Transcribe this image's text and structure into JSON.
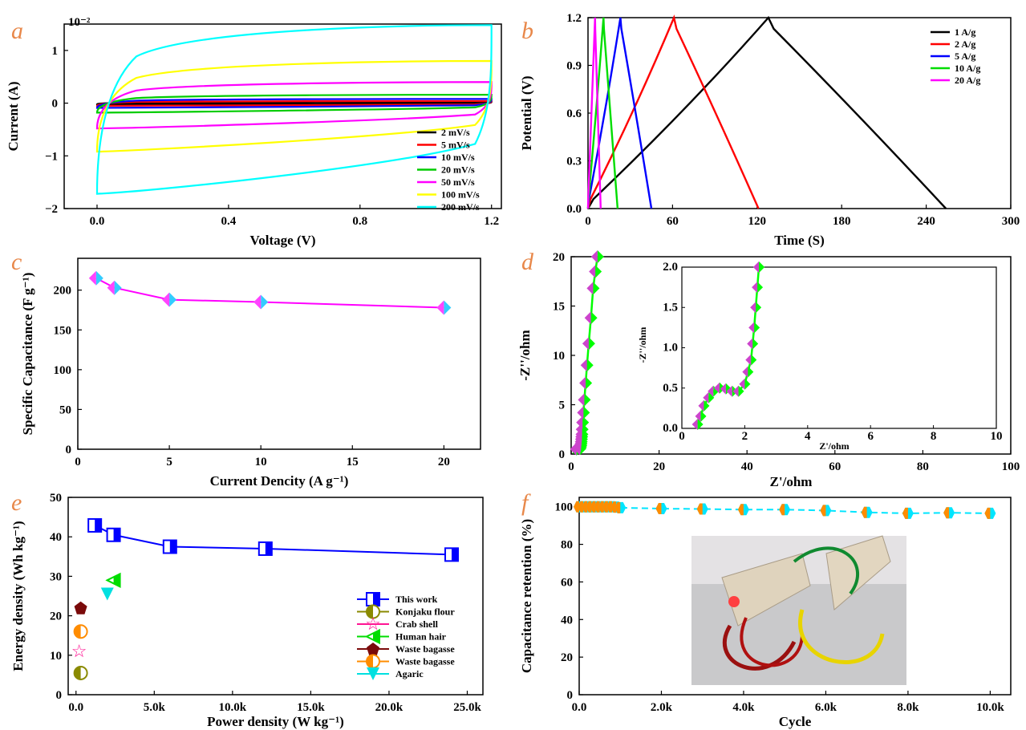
{
  "chart_data": [
    {
      "panel": "a",
      "type": "line",
      "xlabel": "Voltage (V)",
      "ylabel": "Current (A)",
      "multiplier": "10⁻²",
      "xlim": [
        -0.1,
        1.23
      ],
      "ylim": [
        -2,
        1.5
      ],
      "xticks": [
        "0.0",
        "0.4",
        "0.8",
        "1.2"
      ],
      "yticks": [
        "−2",
        "−1",
        "0",
        "1"
      ],
      "legend_position": "bottom-right",
      "series": [
        {
          "name": "2 mV/s",
          "color": "#000000",
          "top": 0.02,
          "bottom": -0.02
        },
        {
          "name": "5 mV/s",
          "color": "#ff0000",
          "top": 0.04,
          "bottom": -0.05
        },
        {
          "name": "10 mV/s",
          "color": "#0000ff",
          "top": 0.08,
          "bottom": -0.09
        },
        {
          "name": "20 mV/s",
          "color": "#00cc00",
          "top": 0.16,
          "bottom": -0.18
        },
        {
          "name": "50 mV/s",
          "color": "#ff00ff",
          "top": 0.4,
          "bottom": -0.48
        },
        {
          "name": "100 mV/s",
          "color": "#ffff00",
          "top": 0.8,
          "bottom": -0.92
        },
        {
          "name": "200 mV/s",
          "color": "#00ffff",
          "top": 1.48,
          "bottom": -1.72
        }
      ]
    },
    {
      "panel": "b",
      "type": "line",
      "xlabel": "Time (S)",
      "ylabel": "Potential (V)",
      "xlim": [
        0,
        300
      ],
      "ylim": [
        0,
        1.2
      ],
      "xticks": [
        "0",
        "60",
        "120",
        "180",
        "240",
        "300"
      ],
      "yticks": [
        "0.0",
        "0.3",
        "0.6",
        "0.9",
        "1.2"
      ],
      "legend_position": "top-right",
      "series": [
        {
          "name": "1 A/g",
          "color": "#000000",
          "peak": 128,
          "end": 254
        },
        {
          "name": "2 A/g",
          "color": "#ff0000",
          "peak": 61,
          "end": 121
        },
        {
          "name": "5 A/g",
          "color": "#0000ff",
          "peak": 23,
          "end": 45
        },
        {
          "name": "10 A/g",
          "color": "#00dd00",
          "peak": 11,
          "end": 21
        },
        {
          "name": "20 A/g",
          "color": "#ff00ff",
          "peak": 5,
          "end": 9
        }
      ]
    },
    {
      "panel": "c",
      "type": "line",
      "xlabel": "Current Dencity (A g⁻¹)",
      "ylabel": "Specific Capacitance (F g⁻¹)",
      "xlim": [
        0,
        22
      ],
      "ylim": [
        0,
        240
      ],
      "xticks": [
        "0",
        "5",
        "10",
        "15",
        "20"
      ],
      "yticks": [
        "0",
        "50",
        "100",
        "150",
        "200"
      ],
      "x": [
        1,
        2,
        5,
        10,
        20
      ],
      "y": [
        215,
        203,
        188,
        185,
        178
      ]
    },
    {
      "panel": "d",
      "type": "scatter",
      "xlabel": "Z'/ohm",
      "ylabel": "-Z''/ohm",
      "xlim": [
        0,
        100
      ],
      "ylim": [
        0,
        20
      ],
      "xticks": [
        "0",
        "20",
        "40",
        "60",
        "80",
        "100"
      ],
      "yticks": [
        "0",
        "5",
        "10",
        "15",
        "20"
      ],
      "inset": {
        "xlabel": "Z'/ohm",
        "ylabel": "-Z''/ohm",
        "xlim": [
          0,
          10
        ],
        "ylim": [
          0,
          2.0
        ],
        "xticks": [
          "0",
          "2",
          "4",
          "6",
          "8",
          "10"
        ],
        "yticks": [
          "0.0",
          "0.5",
          "1.0",
          "1.5",
          "2.0"
        ]
      },
      "x": [
        0.5,
        0.6,
        0.7,
        0.85,
        1.0,
        1.2,
        1.4,
        1.6,
        1.8,
        2.0,
        2.1,
        2.2,
        2.25,
        2.3,
        2.35,
        2.4,
        2.45,
        2.5,
        2.6,
        2.8,
        3.0,
        3.3,
        3.6,
        4.0,
        4.5,
        5.0,
        5.5,
        6.0
      ],
      "y": [
        0.05,
        0.15,
        0.28,
        0.38,
        0.46,
        0.5,
        0.49,
        0.46,
        0.46,
        0.55,
        0.7,
        0.85,
        1.05,
        1.25,
        1.5,
        1.75,
        2.0,
        2.5,
        3.2,
        4.2,
        5.5,
        7.2,
        9.0,
        11.2,
        13.8,
        16.8,
        18.5,
        20.0
      ]
    },
    {
      "panel": "e",
      "type": "scatter",
      "xlabel": "Power density (W kg⁻¹)",
      "ylabel": "Energy density (Wh kg⁻¹)",
      "xlim": [
        -500,
        26000
      ],
      "ylim": [
        0,
        50
      ],
      "xticks": [
        "0.0",
        "5.0k",
        "10.0k",
        "15.0k",
        "20.0k",
        "25.0k"
      ],
      "yticks": [
        "0",
        "10",
        "20",
        "30",
        "40",
        "50"
      ],
      "legend_position": "bottom-right",
      "series": [
        {
          "name": "This work",
          "color": "#0000ff",
          "x": [
            1200,
            2400,
            6000,
            12100,
            24000
          ],
          "y": [
            42.9,
            40.5,
            37.5,
            37.0,
            35.5
          ]
        },
        {
          "name": "Konjaku flour",
          "color": "#8a8a00",
          "x": [
            300
          ],
          "y": [
            5.5
          ]
        },
        {
          "name": "Crab shell",
          "color": "#ff1493",
          "x": [
            200
          ],
          "y": [
            11
          ]
        },
        {
          "name": "Human hair",
          "color": "#00dd00",
          "x": [
            2400
          ],
          "y": [
            29
          ]
        },
        {
          "name": "Waste bagasse",
          "color": "#7a0a0a",
          "x": [
            300
          ],
          "y": [
            22
          ]
        },
        {
          "name": "Waste bagasse",
          "color": "#ff8c00",
          "x": [
            300
          ],
          "y": [
            16
          ]
        },
        {
          "name": "Agaric",
          "color": "#00e0e0",
          "x": [
            2000
          ],
          "y": [
            25.5
          ]
        }
      ]
    },
    {
      "panel": "f",
      "type": "scatter",
      "xlabel": "Cycle",
      "ylabel": "Capacitance retention (%)",
      "xlim": [
        0,
        10500
      ],
      "ylim": [
        0,
        105
      ],
      "xticks": [
        "0.0",
        "2.0k",
        "4.0k",
        "6.0k",
        "8.0k",
        "10.0k"
      ],
      "yticks": [
        "0",
        "20",
        "40",
        "60",
        "80",
        "100"
      ],
      "x": [
        0,
        100,
        200,
        300,
        400,
        500,
        600,
        700,
        800,
        900,
        1000,
        2000,
        3000,
        4000,
        5000,
        6000,
        7000,
        8000,
        9000,
        10000
      ],
      "y": [
        100,
        100,
        100,
        100,
        100,
        100,
        100,
        100,
        100,
        99.8,
        99.5,
        99,
        98.8,
        98.5,
        98.5,
        98,
        97,
        96.5,
        96.8,
        96.5
      ]
    }
  ],
  "panel_labels": [
    "a",
    "b",
    "c",
    "d",
    "e",
    "f"
  ],
  "colors": {
    "c_line": "#ff00ff",
    "c_marker_a": "#ff44ff",
    "c_marker_b": "#33ccff",
    "d_line": "#00ff00",
    "d_marker": "#cc44cc",
    "f_line": "#00e5ff",
    "f_marker": "#ff8c00"
  }
}
